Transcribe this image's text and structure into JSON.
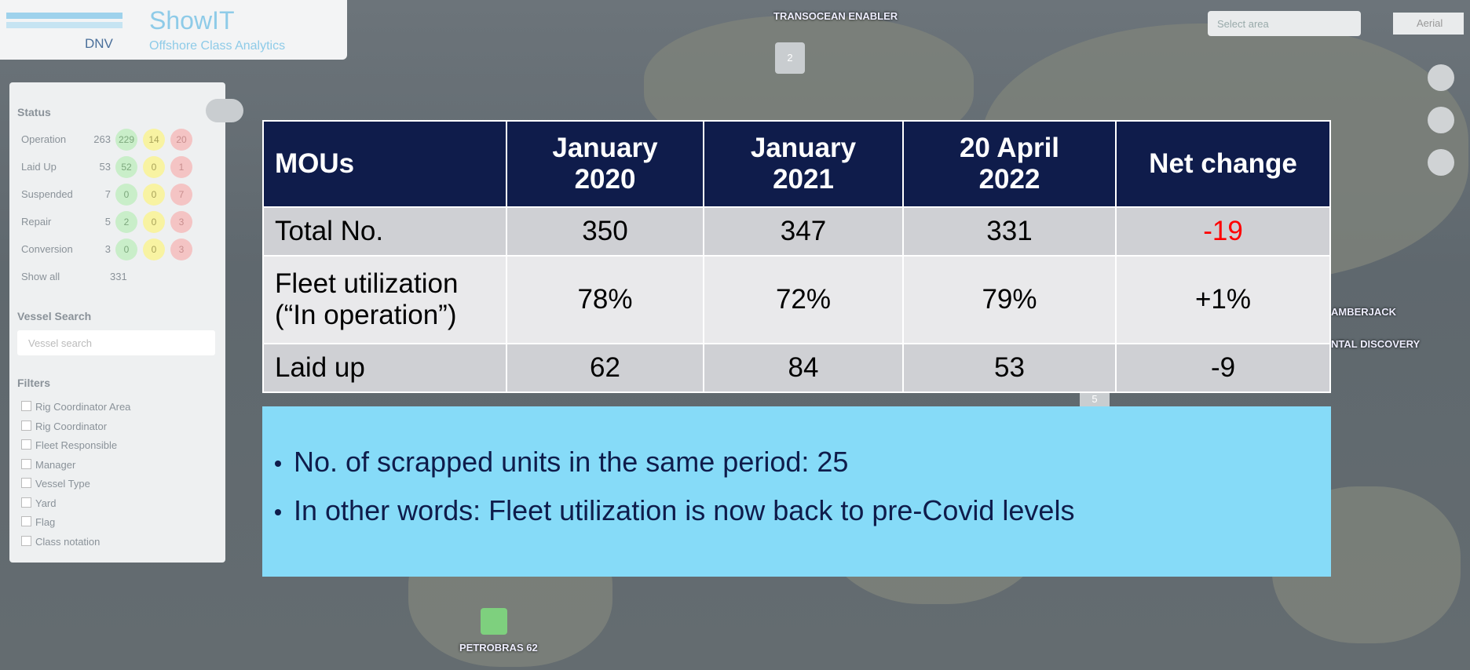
{
  "header": {
    "brand": "DNV",
    "app": "ShowIT",
    "subtitle": "Offshore Class Analytics"
  },
  "map": {
    "labels": [
      "TRANSOCEAN ENABLER",
      "AMBERJACK",
      "NTAL DISCOVERY",
      "PETROBRAS 62"
    ],
    "clusters": [
      "2",
      "5"
    ]
  },
  "controls": {
    "select_area": "Select area",
    "aerial": "Aerial"
  },
  "sidebar": {
    "status_title": "Status",
    "status": [
      {
        "name": "Operation",
        "total": "263",
        "green": "229",
        "yellow": "14",
        "red": "20"
      },
      {
        "name": "Laid Up",
        "total": "53",
        "green": "52",
        "yellow": "0",
        "red": "1"
      },
      {
        "name": "Suspended",
        "total": "7",
        "green": "0",
        "yellow": "0",
        "red": "7"
      },
      {
        "name": "Repair",
        "total": "5",
        "green": "2",
        "yellow": "0",
        "red": "3"
      },
      {
        "name": "Conversion",
        "total": "3",
        "green": "0",
        "yellow": "0",
        "red": "3"
      }
    ],
    "show_all": "Show all",
    "show_all_count": "331",
    "search_title": "Vessel Search",
    "search_placeholder": "Vessel search",
    "filters_title": "Filters",
    "filters": [
      "Rig Coordinator Area",
      "Rig Coordinator",
      "Fleet Responsible",
      "Manager",
      "Vessel Type",
      "Yard",
      "Flag",
      "Class notation"
    ]
  },
  "table": {
    "header": [
      "MOUs",
      "January 2020",
      "January 2021",
      "20 April 2022",
      "Net change"
    ],
    "rows": [
      [
        "Total No.",
        "350",
        "347",
        "331",
        "-19"
      ],
      [
        "Fleet utilization (“In operation”)",
        "78%",
        "72%",
        "79%",
        "+1%"
      ],
      [
        "Laid up",
        "62",
        "84",
        "53",
        "-9"
      ]
    ]
  },
  "bullets": [
    "No. of scrapped units in the same period: 25",
    "In other words: Fleet utilization is now back to pre-Covid levels"
  ]
}
